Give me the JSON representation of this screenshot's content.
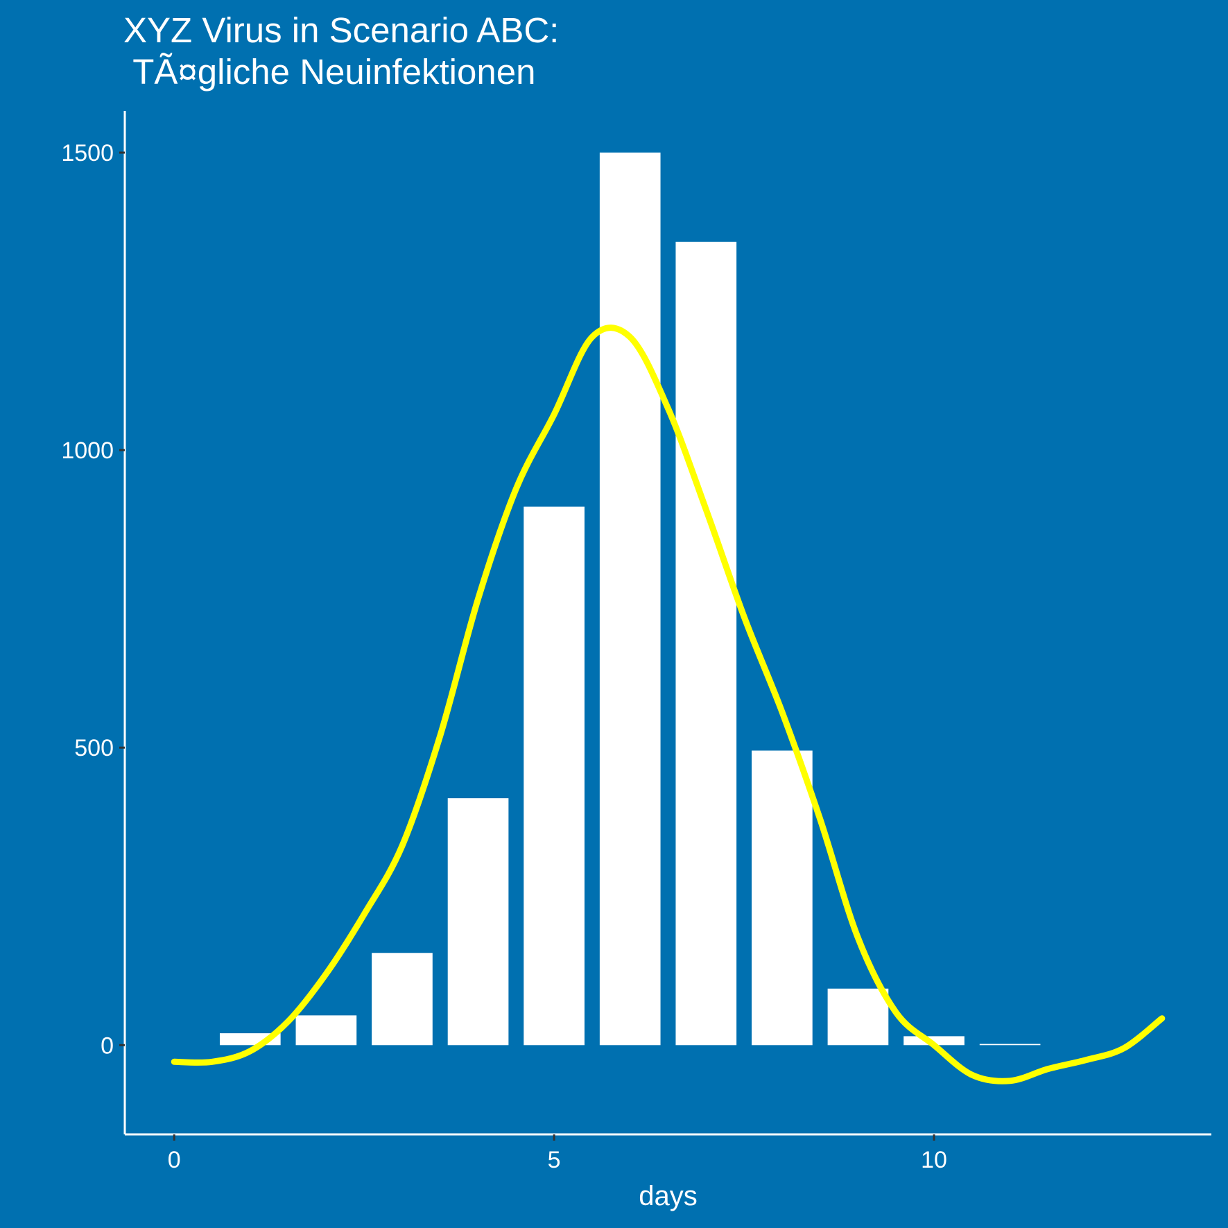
{
  "chart_data": {
    "type": "bar",
    "title_line1": "XYZ Virus in Scenario ABC:",
    "title_line2": " TÃ¤gliche Neuinfektionen",
    "xlabel": "days",
    "ylabel": "",
    "xlim": [
      -0.65,
      13.65
    ],
    "ylim": [
      -150,
      1570
    ],
    "x_ticks": [
      0,
      5,
      10
    ],
    "y_ticks": [
      0,
      500,
      1000,
      1500
    ],
    "bar_width": 0.8,
    "grid": false,
    "colors": {
      "background": "#0070b0",
      "bars": "#ffffff",
      "axes": "#ffffff",
      "smooth_line": "#ffff00"
    },
    "series": [
      {
        "type": "bar",
        "x": [
          1,
          2,
          3,
          4,
          5,
          6,
          7,
          8,
          9,
          10,
          11
        ],
        "values": [
          20,
          50,
          155,
          415,
          905,
          1500,
          1350,
          495,
          95,
          15,
          2
        ]
      },
      {
        "type": "line",
        "style": "smooth",
        "x": [
          0,
          0.5,
          1,
          1.5,
          2,
          2.5,
          3,
          3.5,
          4,
          4.5,
          5,
          5.5,
          6,
          6.5,
          7,
          7.5,
          8,
          8.5,
          9,
          9.5,
          10,
          10.5,
          11,
          11.5,
          12,
          12.5,
          13
        ],
        "values": [
          -28,
          -28,
          -10,
          40,
          120,
          220,
          335,
          520,
          750,
          935,
          1060,
          1190,
          1190,
          1070,
          900,
          720,
          560,
          380,
          180,
          55,
          0,
          -50,
          -60,
          -40,
          -25,
          -5,
          45
        ]
      }
    ]
  }
}
